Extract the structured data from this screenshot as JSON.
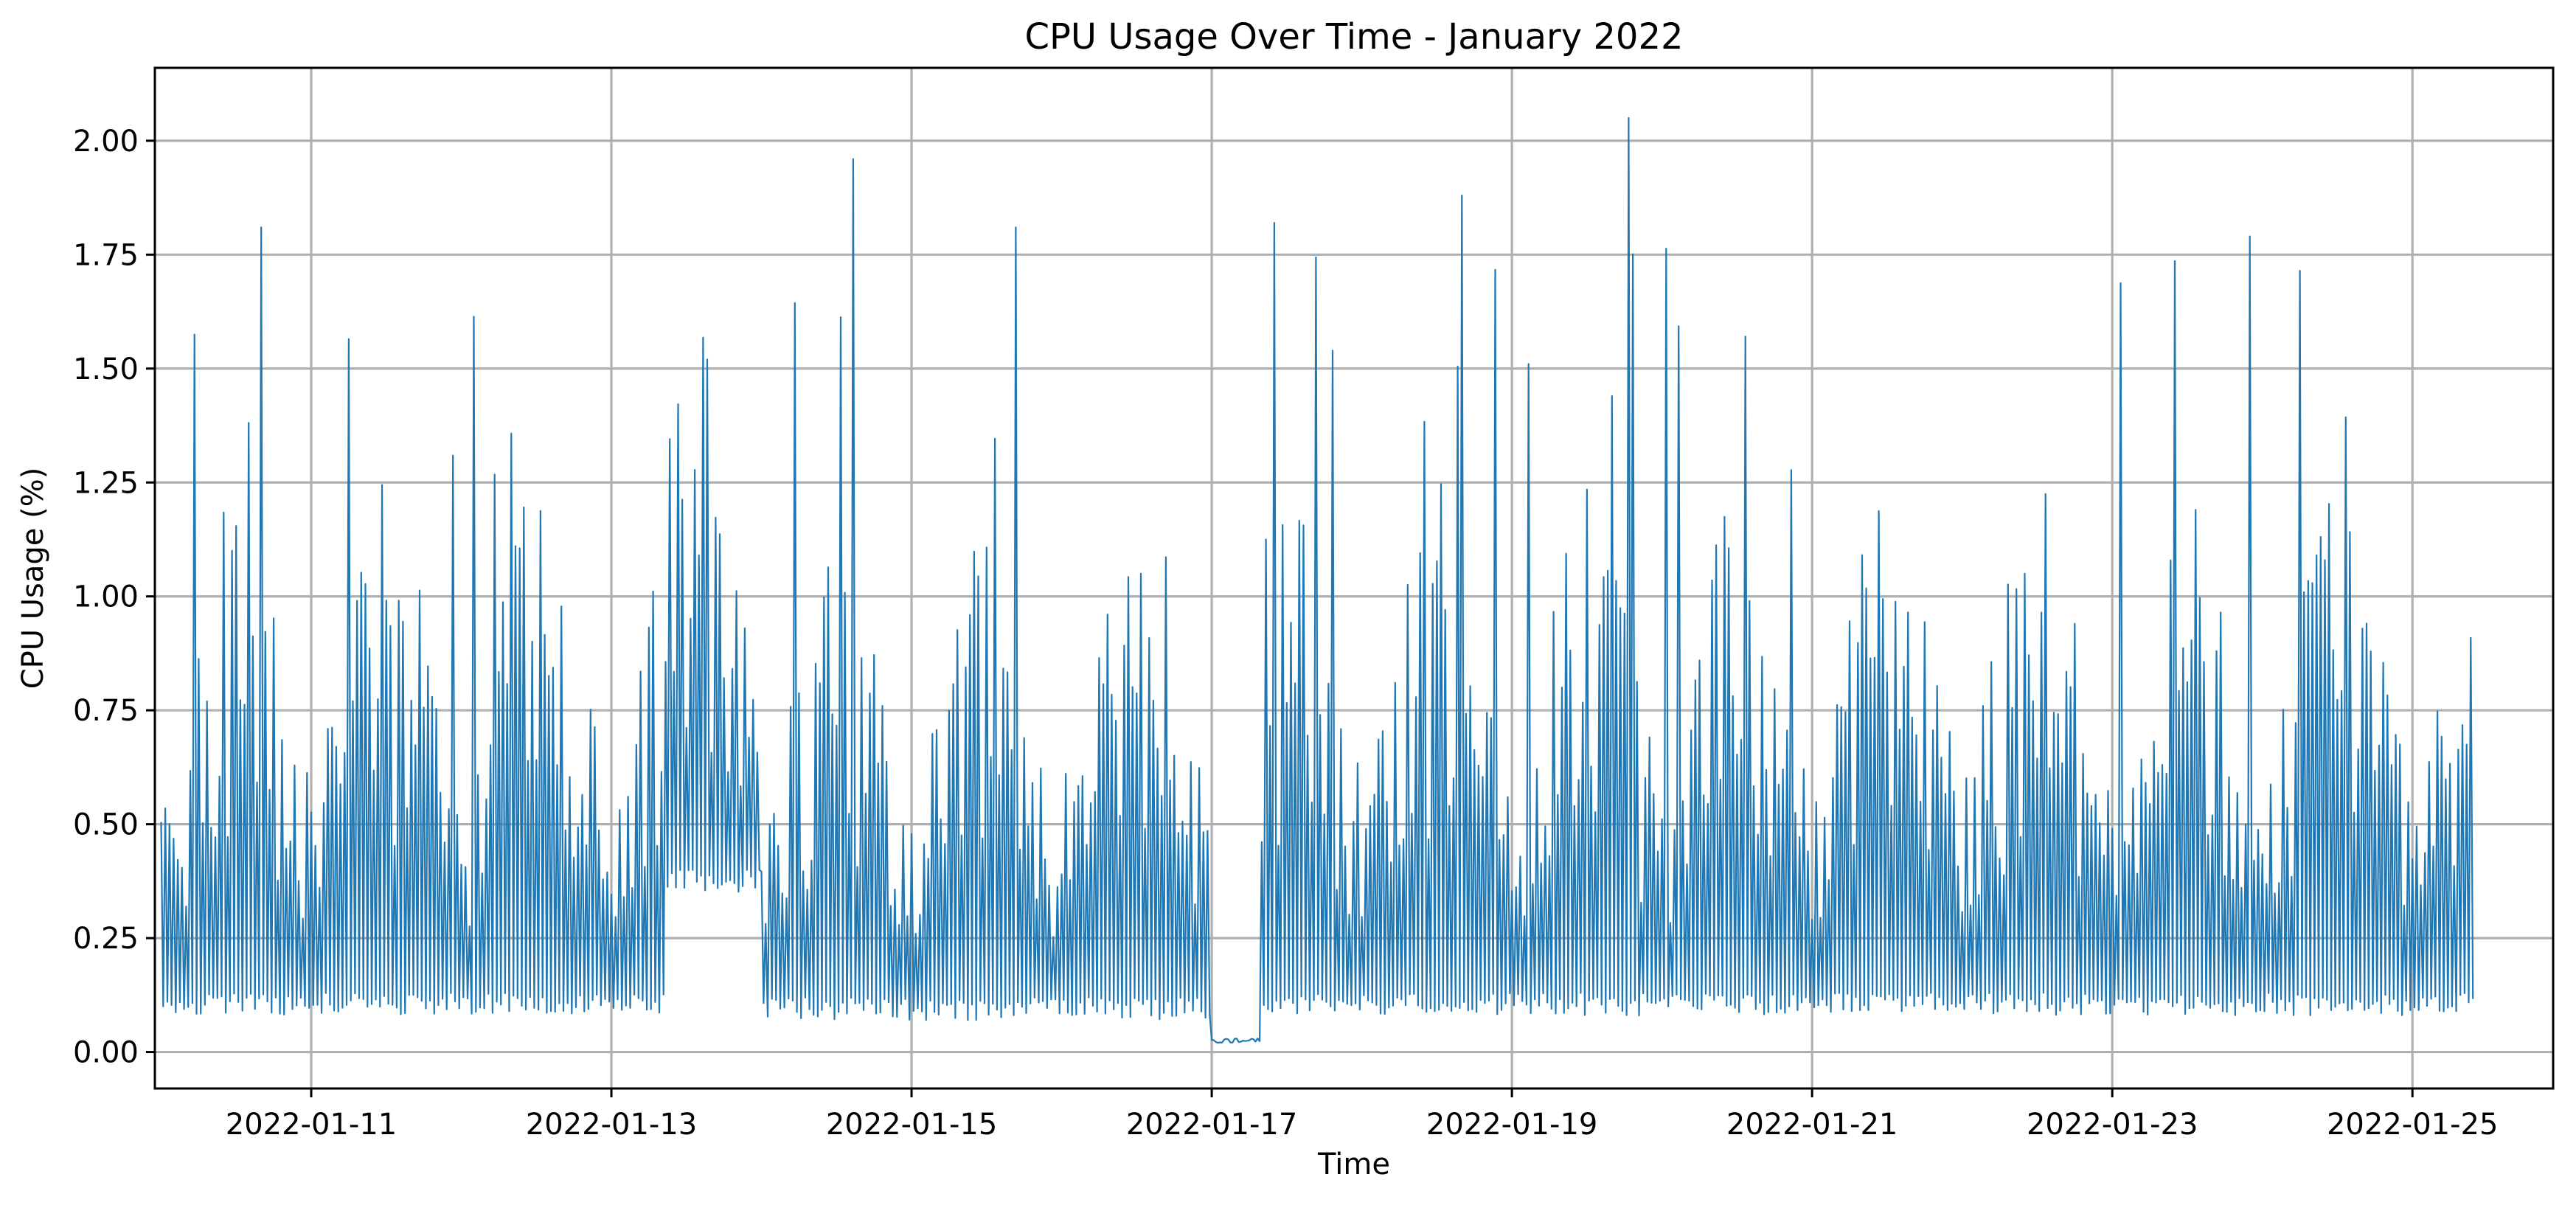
{
  "chart_data": {
    "type": "line",
    "title": "CPU Usage Over Time - January 2022",
    "xlabel": "Time",
    "ylabel": "CPU Usage (%)",
    "x_type": "date",
    "x_range": [
      "2022-01-09T23:00",
      "2022-01-25T22:30"
    ],
    "ylim": [
      -0.08,
      2.16
    ],
    "grid": true,
    "x_ticks": [
      "2022-01-11",
      "2022-01-13",
      "2022-01-15",
      "2022-01-17",
      "2022-01-19",
      "2022-01-21",
      "2022-01-23",
      "2022-01-25"
    ],
    "y_ticks": [
      "0.00",
      "0.25",
      "0.50",
      "0.75",
      "1.00",
      "1.25",
      "1.50",
      "1.75",
      "2.00"
    ],
    "series": [
      {
        "color": "#1f77b4",
        "x_start": "2022-01-10T00:00",
        "x_end": "2022-01-25T09:40",
        "sampling": "dense high-frequency samples; values summarized as per-interval min/max envelope",
        "segments": [
          {
            "start": "2022-01-10T00:00",
            "end": "2022-01-13T09:00",
            "base": 0.08,
            "peak_typ": 1.15,
            "peak_max": 1.81
          },
          {
            "start": "2022-01-13T09:00",
            "end": "2022-01-14T00:00",
            "base": 0.35,
            "peak_typ": 1.35,
            "peak_max": 1.75
          },
          {
            "start": "2022-01-14T00:00",
            "end": "2022-01-17T00:00",
            "base": 0.07,
            "peak_typ": 1.05,
            "peak_max": 1.96
          },
          {
            "start": "2022-01-17T00:00",
            "end": "2022-01-17T08:00",
            "base": 0.02,
            "peak_typ": 0.03,
            "peak_max": 0.03
          },
          {
            "start": "2022-01-17T08:00",
            "end": "2022-01-25T09:40",
            "base": 0.08,
            "peak_typ": 1.15,
            "peak_max": 2.05
          }
        ],
        "notable_peaks": [
          {
            "x": "2022-01-10T16:00",
            "y": 1.81
          },
          {
            "x": "2022-01-14T15:00",
            "y": 1.96
          },
          {
            "x": "2022-01-15T17:00",
            "y": 1.81
          },
          {
            "x": "2022-01-17T10:00",
            "y": 1.82
          },
          {
            "x": "2022-01-18T16:00",
            "y": 1.88
          },
          {
            "x": "2022-01-19T19:00",
            "y": 2.05
          },
          {
            "x": "2022-01-23T22:00",
            "y": 1.79
          }
        ]
      }
    ]
  }
}
